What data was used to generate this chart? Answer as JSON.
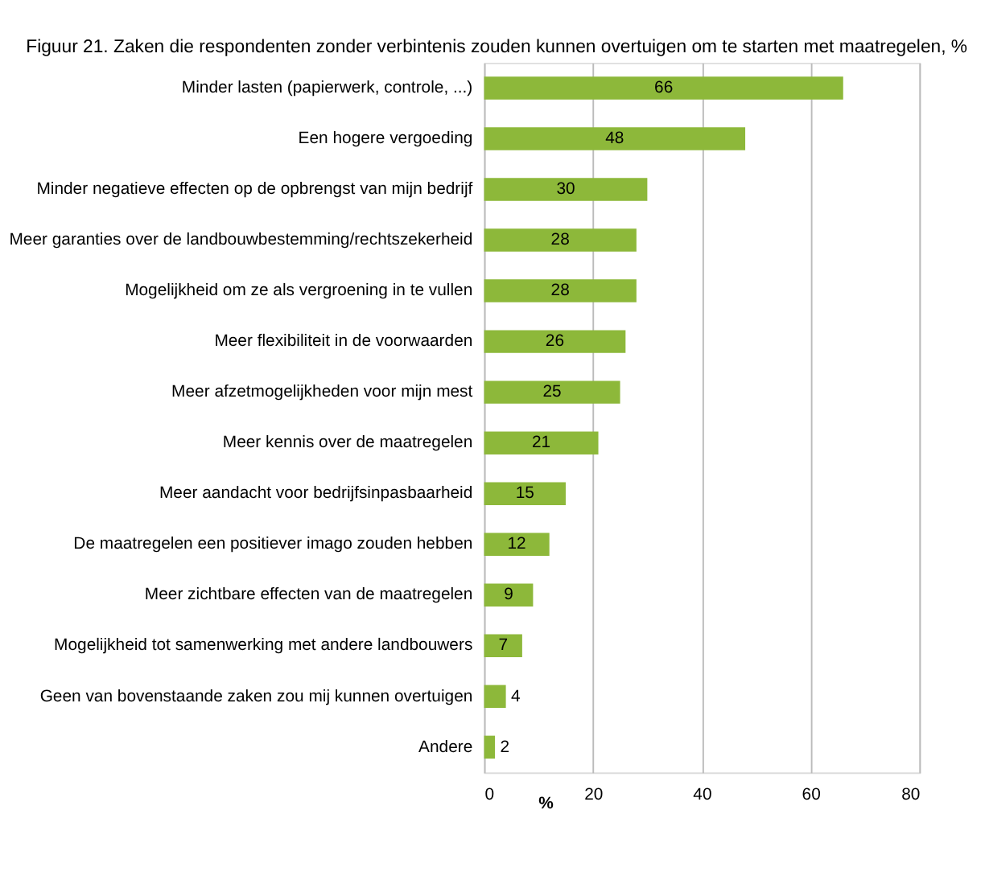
{
  "chart_data": {
    "type": "bar",
    "orientation": "horizontal",
    "title": "Figuur 21. Zaken die respondenten zonder verbintenis zouden kunnen overtuigen om te starten met maatregelen, %",
    "xlabel": "%",
    "categories": [
      "Minder lasten (papierwerk, controle, ...)",
      "Een hogere vergoeding",
      "Minder negatieve effecten op de opbrengst van mijn bedrijf",
      "Meer garanties over de landbouwbestemming/rechtszekerheid",
      "Mogelijkheid om ze als vergroening in te vullen",
      "Meer flexibiliteit in de voorwaarden",
      "Meer afzetmogelijkheden voor mijn mest",
      "Meer kennis over de maatregelen",
      "Meer aandacht voor bedrijfsinpasbaarheid",
      "De maatregelen een positiever imago zouden hebben",
      "Meer zichtbare effecten van de maatregelen",
      "Mogelijkheid tot  samenwerking met andere landbouwers",
      "Geen van bovenstaande zaken zou mij kunnen overtuigen",
      "Andere"
    ],
    "values": [
      66,
      48,
      30,
      28,
      28,
      26,
      25,
      21,
      15,
      12,
      9,
      7,
      4,
      2
    ],
    "color": "#8db83a",
    "xlim": [
      0,
      80
    ],
    "xticks": [
      0,
      20,
      40,
      60,
      80
    ],
    "grid": "x",
    "data_labels": true
  }
}
